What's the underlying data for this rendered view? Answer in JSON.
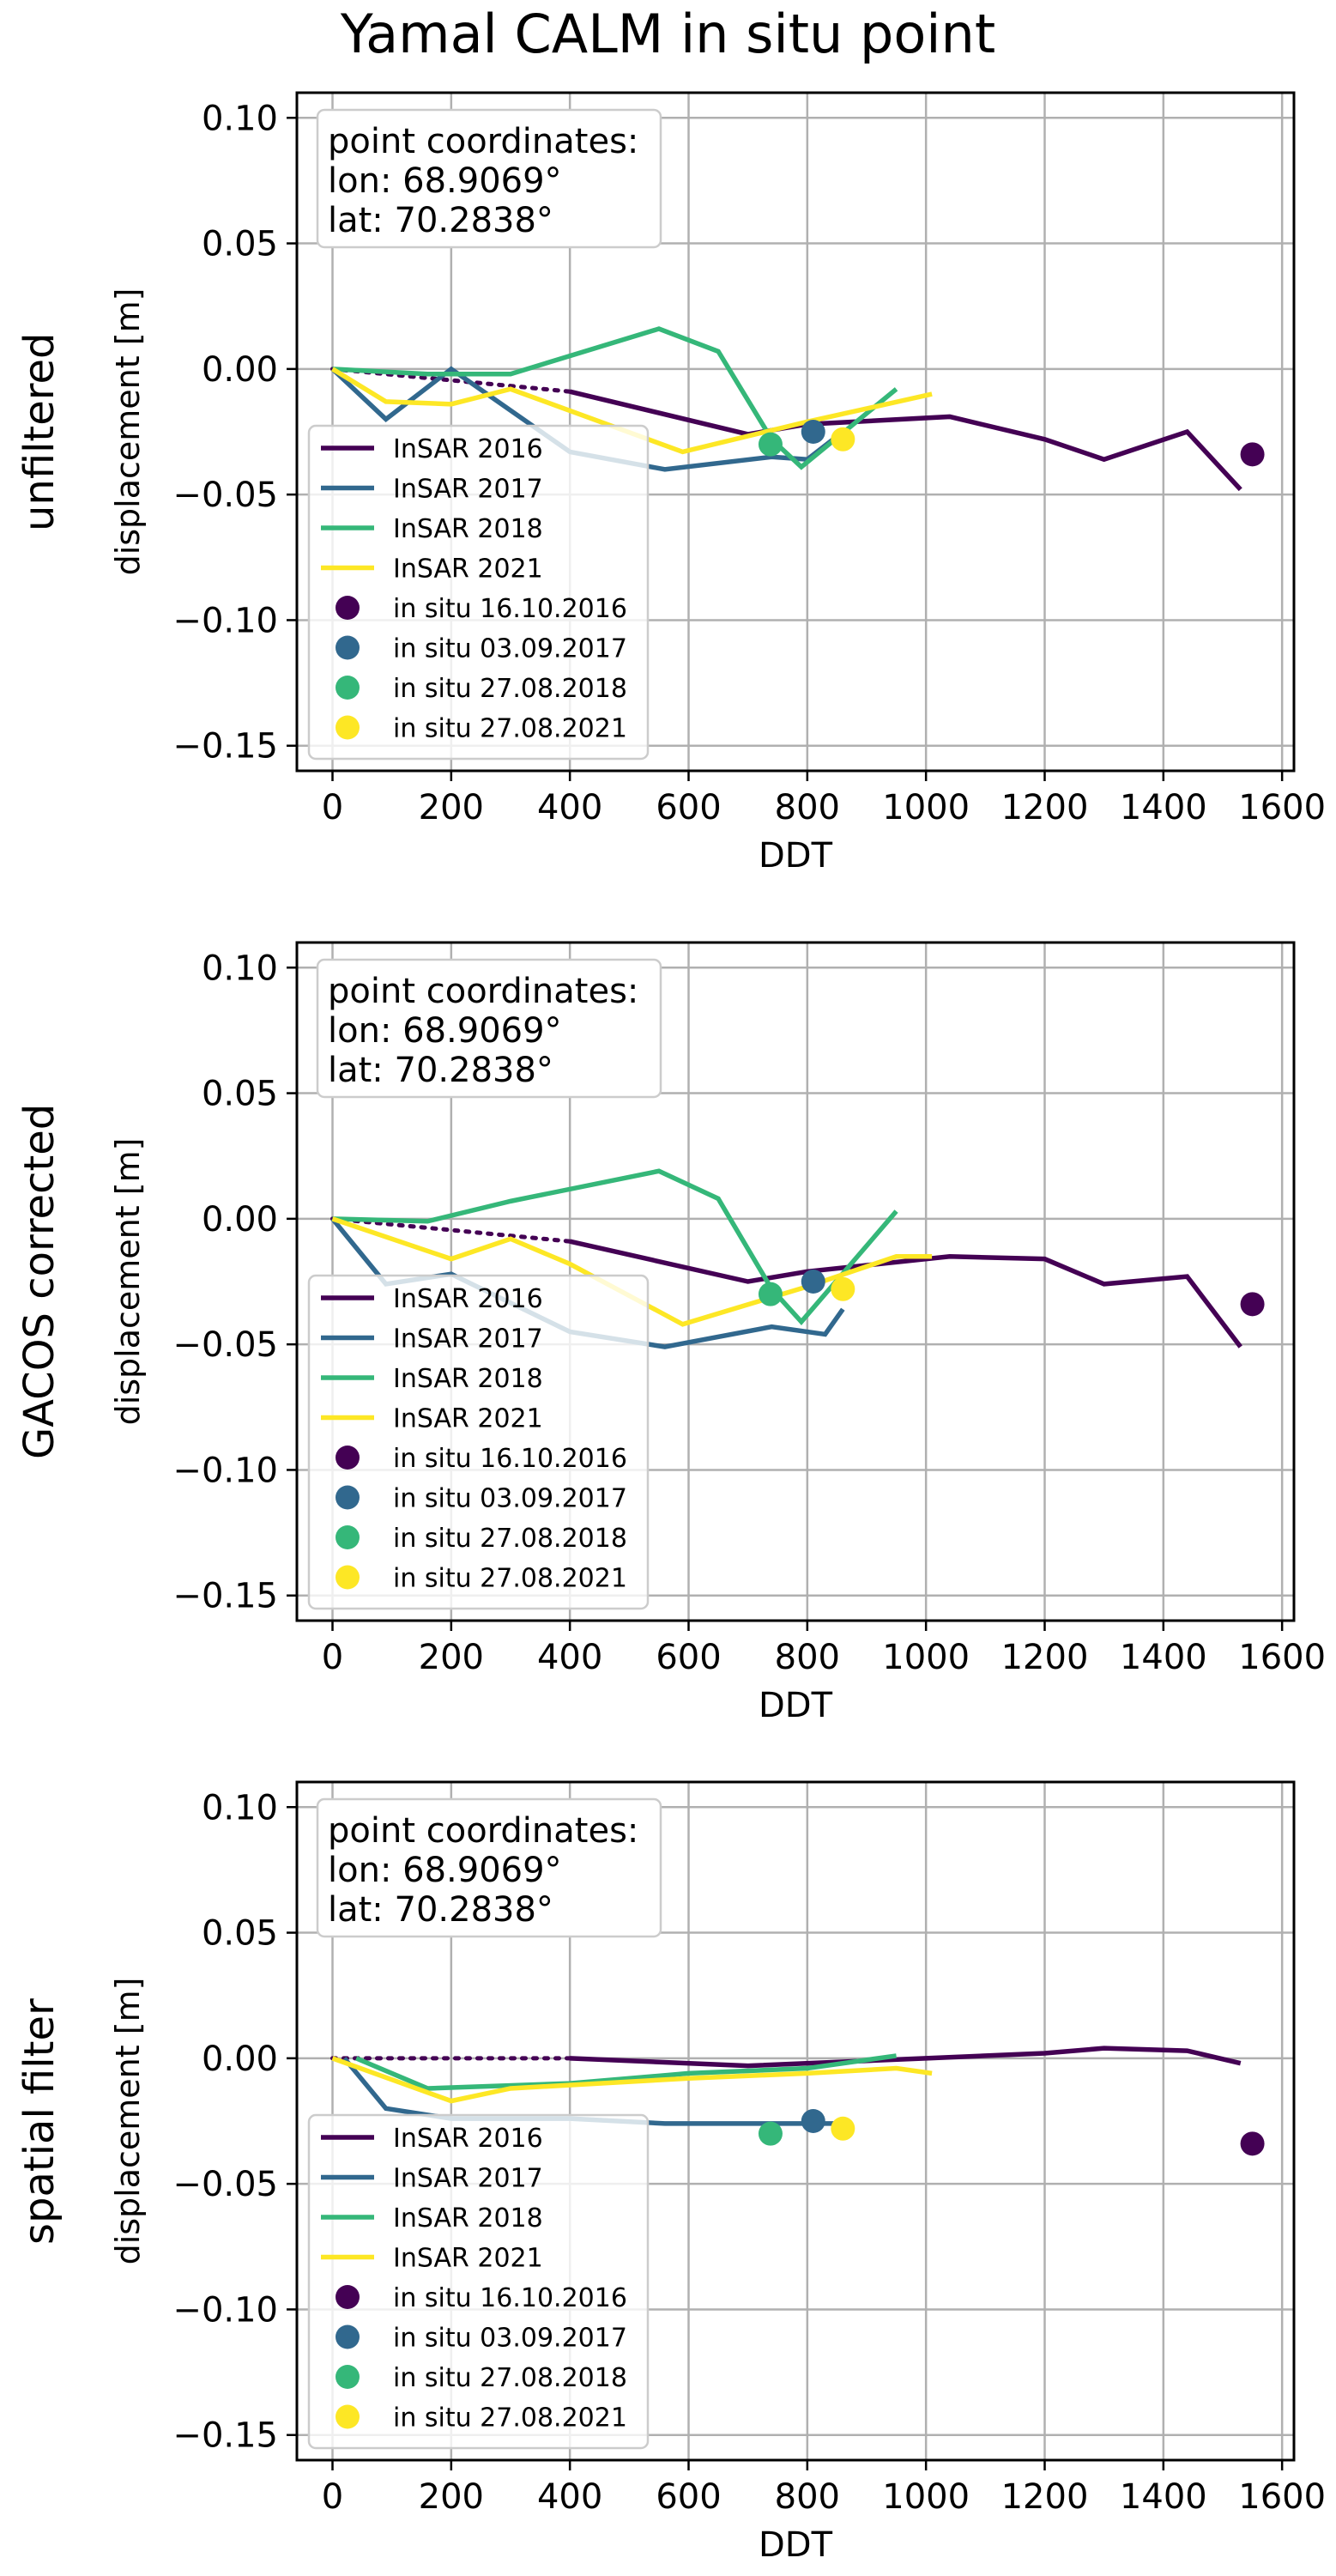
{
  "title": "Yamal CALM in situ point",
  "colors": {
    "2016": "#440154",
    "2017": "#31688e",
    "2018": "#35b779",
    "2021": "#fde725",
    "grid": "#b0b0b0",
    "legend_border": "#cccccc"
  },
  "chart_data": [
    {
      "type": "line",
      "row_label": "unfiltered",
      "xlabel": "DDT",
      "ylabel": "displacement [m]",
      "xlim": [
        -60,
        1620
      ],
      "ylim": [
        -0.16,
        0.11
      ],
      "xticks": [
        0,
        200,
        400,
        600,
        800,
        1000,
        1200,
        1400,
        1600
      ],
      "xtick_labels": [
        "0",
        "200",
        "400",
        "600",
        "800",
        "1000",
        "1200",
        "1400",
        "1600"
      ],
      "yticks": [
        0.1,
        0.05,
        0.0,
        -0.05,
        -0.1,
        -0.15
      ],
      "ytick_labels": [
        "0.10",
        "0.05",
        "0.00",
        "−0.05",
        "−0.10",
        "−0.15"
      ],
      "grid": true,
      "legend_position": "center-left",
      "info_box": [
        "point coordinates:",
        "lon: 68.9069°",
        "lat: 70.2838°"
      ],
      "series": [
        {
          "name": "InSAR 2016",
          "color_key": "2016",
          "dotted_x": [
            0,
            400
          ],
          "dotted_y": [
            0.0,
            -0.009
          ],
          "x": [
            400,
            700,
            800,
            1040,
            1200,
            1300,
            1440,
            1530
          ],
          "y": [
            -0.009,
            -0.026,
            -0.022,
            -0.019,
            -0.028,
            -0.036,
            -0.025,
            -0.048
          ]
        },
        {
          "name": "InSAR 2017",
          "color_key": "2017",
          "x": [
            0,
            90,
            200,
            400,
            560,
            740,
            800,
            860
          ],
          "y": [
            0.0,
            -0.02,
            0.0,
            -0.033,
            -0.04,
            -0.035,
            -0.036,
            -0.025
          ]
        },
        {
          "name": "InSAR 2018",
          "color_key": "2018",
          "x": [
            0,
            160,
            300,
            550,
            650,
            740,
            790,
            950
          ],
          "y": [
            0.0,
            -0.002,
            -0.002,
            0.016,
            0.007,
            -0.028,
            -0.039,
            -0.008
          ]
        },
        {
          "name": "InSAR 2021",
          "color_key": "2021",
          "x": [
            0,
            90,
            200,
            300,
            590,
            800,
            1010
          ],
          "y": [
            0.0,
            -0.013,
            -0.014,
            -0.008,
            -0.033,
            -0.021,
            -0.01
          ]
        }
      ],
      "in_situ": [
        {
          "name": "in situ 16.10.2016",
          "color_key": "2016",
          "x": 1550,
          "y": -0.034
        },
        {
          "name": "in situ 03.09.2017",
          "color_key": "2017",
          "x": 810,
          "y": -0.025
        },
        {
          "name": "in situ 27.08.2018",
          "color_key": "2018",
          "x": 738,
          "y": -0.03
        },
        {
          "name": "in situ 27.08.2021",
          "color_key": "2021",
          "x": 860,
          "y": -0.028
        }
      ]
    },
    {
      "type": "line",
      "row_label": "GACOS corrected",
      "xlabel": "DDT",
      "ylabel": "displacement [m]",
      "xlim": [
        -60,
        1620
      ],
      "ylim": [
        -0.16,
        0.11
      ],
      "xticks": [
        0,
        200,
        400,
        600,
        800,
        1000,
        1200,
        1400,
        1600
      ],
      "xtick_labels": [
        "0",
        "200",
        "400",
        "600",
        "800",
        "1000",
        "1200",
        "1400",
        "1600"
      ],
      "yticks": [
        0.1,
        0.05,
        0.0,
        -0.05,
        -0.1,
        -0.15
      ],
      "ytick_labels": [
        "0.10",
        "0.05",
        "0.00",
        "−0.05",
        "−0.10",
        "−0.15"
      ],
      "grid": true,
      "legend_position": "center-left",
      "info_box": [
        "point coordinates:",
        "lon: 68.9069°",
        "lat: 70.2838°"
      ],
      "series": [
        {
          "name": "InSAR 2016",
          "color_key": "2016",
          "dotted_x": [
            0,
            400
          ],
          "dotted_y": [
            0.0,
            -0.009
          ],
          "x": [
            400,
            700,
            800,
            1040,
            1200,
            1300,
            1440,
            1530
          ],
          "y": [
            -0.009,
            -0.025,
            -0.021,
            -0.015,
            -0.016,
            -0.026,
            -0.023,
            -0.051
          ]
        },
        {
          "name": "InSAR 2017",
          "color_key": "2017",
          "x": [
            0,
            90,
            200,
            400,
            560,
            740,
            830,
            860
          ],
          "y": [
            0.0,
            -0.026,
            -0.022,
            -0.045,
            -0.051,
            -0.043,
            -0.046,
            -0.036
          ]
        },
        {
          "name": "InSAR 2018",
          "color_key": "2018",
          "x": [
            0,
            160,
            300,
            550,
            650,
            740,
            790,
            950
          ],
          "y": [
            0.0,
            -0.001,
            0.007,
            0.019,
            0.008,
            -0.028,
            -0.041,
            0.003
          ]
        },
        {
          "name": "InSAR 2021",
          "color_key": "2021",
          "x": [
            0,
            200,
            300,
            400,
            590,
            800,
            950,
            1010
          ],
          "y": [
            0.0,
            -0.016,
            -0.008,
            -0.018,
            -0.042,
            -0.027,
            -0.015,
            -0.015
          ]
        }
      ],
      "in_situ": [
        {
          "name": "in situ 16.10.2016",
          "color_key": "2016",
          "x": 1550,
          "y": -0.034
        },
        {
          "name": "in situ 03.09.2017",
          "color_key": "2017",
          "x": 810,
          "y": -0.025
        },
        {
          "name": "in situ 27.08.2018",
          "color_key": "2018",
          "x": 738,
          "y": -0.03
        },
        {
          "name": "in situ 27.08.2021",
          "color_key": "2021",
          "x": 860,
          "y": -0.028
        }
      ]
    },
    {
      "type": "line",
      "row_label": "spatial filter",
      "xlabel": "DDT",
      "ylabel": "displacement [m]",
      "xlim": [
        -60,
        1620
      ],
      "ylim": [
        -0.16,
        0.11
      ],
      "xticks": [
        0,
        200,
        400,
        600,
        800,
        1000,
        1200,
        1400,
        1600
      ],
      "xtick_labels": [
        "0",
        "200",
        "400",
        "600",
        "800",
        "1000",
        "1200",
        "1400",
        "1600"
      ],
      "yticks": [
        0.1,
        0.05,
        0.0,
        -0.05,
        -0.1,
        -0.15
      ],
      "ytick_labels": [
        "0.10",
        "0.05",
        "0.00",
        "−0.05",
        "−0.10",
        "−0.15"
      ],
      "grid": true,
      "legend_position": "center-left",
      "info_box": [
        "point coordinates:",
        "lon: 68.9069°",
        "lat: 70.2838°"
      ],
      "series": [
        {
          "name": "InSAR 2016",
          "color_key": "2016",
          "dotted_x": [
            0,
            400
          ],
          "dotted_y": [
            0.0,
            0.0
          ],
          "x": [
            400,
            700,
            1000,
            1200,
            1300,
            1440,
            1530
          ],
          "y": [
            0.0,
            -0.003,
            0.0,
            0.002,
            0.004,
            0.003,
            -0.002
          ]
        },
        {
          "name": "InSAR 2017",
          "color_key": "2017",
          "x": [
            20,
            90,
            200,
            400,
            560,
            740,
            860
          ],
          "y": [
            0.0,
            -0.02,
            -0.024,
            -0.024,
            -0.026,
            -0.026,
            -0.026
          ]
        },
        {
          "name": "InSAR 2018",
          "color_key": "2018",
          "x": [
            40,
            160,
            400,
            600,
            800,
            950
          ],
          "y": [
            0.0,
            -0.012,
            -0.01,
            -0.006,
            -0.004,
            0.001
          ]
        },
        {
          "name": "InSAR 2021",
          "color_key": "2021",
          "x": [
            0,
            200,
            300,
            600,
            800,
            950,
            1010
          ],
          "y": [
            0.0,
            -0.017,
            -0.012,
            -0.008,
            -0.006,
            -0.004,
            -0.006
          ]
        }
      ],
      "in_situ": [
        {
          "name": "in situ 16.10.2016",
          "color_key": "2016",
          "x": 1550,
          "y": -0.034
        },
        {
          "name": "in situ 03.09.2017",
          "color_key": "2017",
          "x": 810,
          "y": -0.025
        },
        {
          "name": "in situ 27.08.2018",
          "color_key": "2018",
          "x": 738,
          "y": -0.03
        },
        {
          "name": "in situ 27.08.2021",
          "color_key": "2021",
          "x": 860,
          "y": -0.028
        }
      ]
    }
  ]
}
